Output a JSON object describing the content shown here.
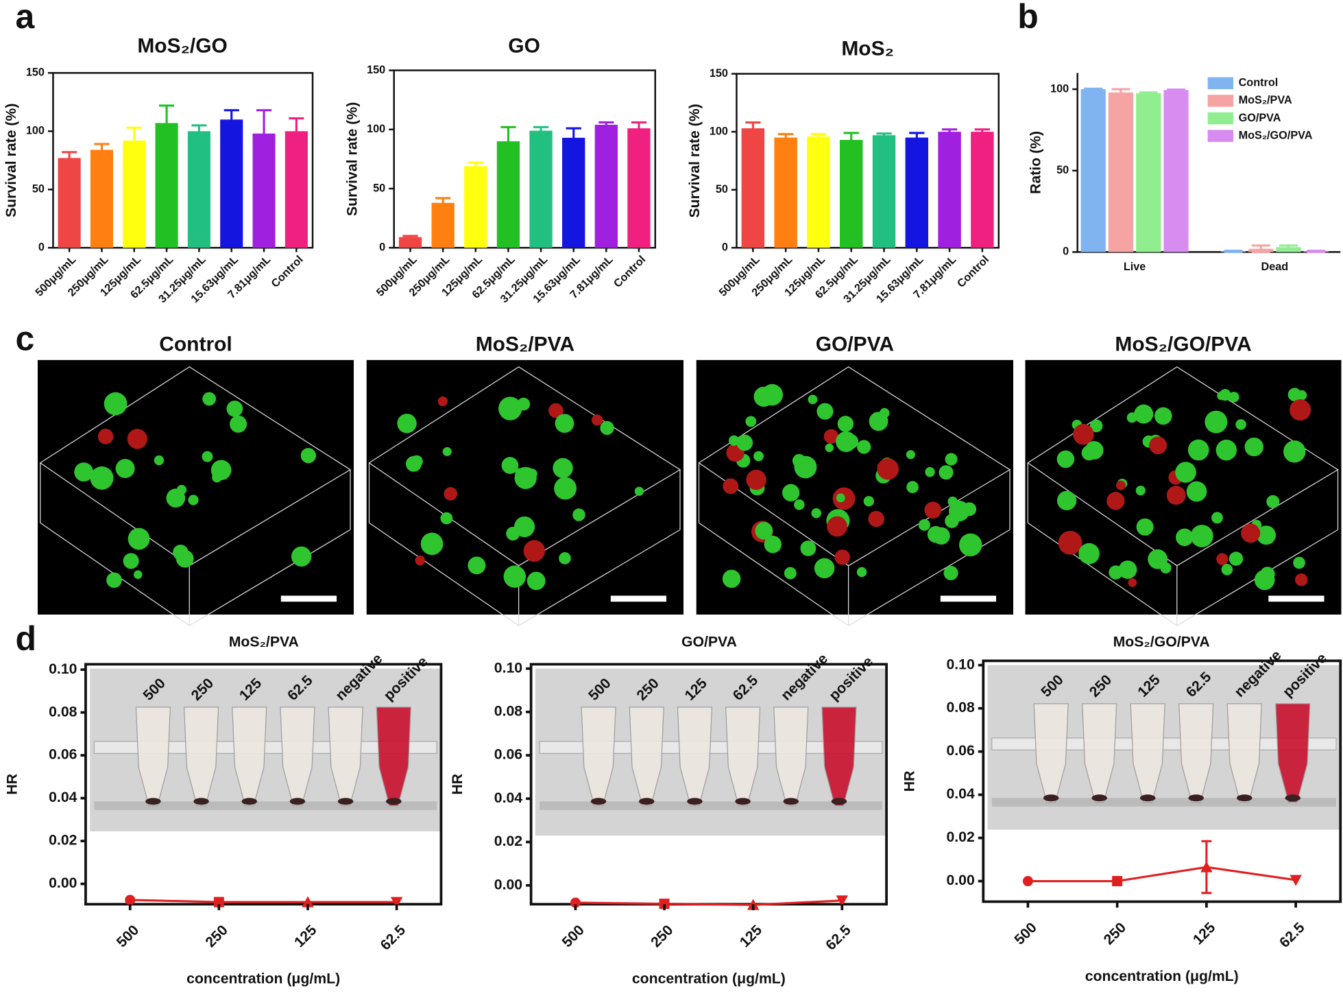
{
  "panel_labels": [
    "a",
    "b",
    "c",
    "d"
  ],
  "images": [
    {
      "title": "Control"
    },
    {
      "title": "MoS₂/PVA"
    },
    {
      "title": "GO/PVA"
    },
    {
      "title": "MoS₂/GO/PVA"
    }
  ],
  "chart_data": [
    {
      "type": "bar",
      "title": "MoS₂/GO",
      "y_label": "Survival rate (%)",
      "categories": [
        "500μg/mL",
        "250μg/mL",
        "125μg/mL",
        "62.5μg/mL",
        "31.25μg/mL",
        "15.63μg/mL",
        "7.81μg/mL",
        "Control"
      ],
      "values": [
        77,
        84,
        92,
        107,
        100,
        110,
        98,
        100
      ],
      "errors": [
        5,
        5,
        11,
        15,
        5,
        8,
        20,
        11
      ],
      "colors": [
        "#f04545",
        "#ff8010",
        "#ffff10",
        "#22c022",
        "#22c080",
        "#1515e0",
        "#a020e0",
        "#f02080"
      ],
      "ylim": [
        0,
        150
      ],
      "yticks": [
        0,
        50,
        100,
        150
      ]
    },
    {
      "type": "bar",
      "title": "GO",
      "y_label": "Survival rate (%)",
      "categories": [
        "500μg/mL",
        "250μg/mL",
        "125μg/mL",
        "62.5μg/mL",
        "31.25μg/mL",
        "15.63μg/mL",
        "7.81μg/mL",
        "Control"
      ],
      "values": [
        9,
        38,
        69,
        90,
        99,
        93,
        104,
        101
      ],
      "errors": [
        1,
        4,
        3,
        12,
        3,
        8,
        2,
        5
      ],
      "colors": [
        "#f04545",
        "#ff8010",
        "#ffff10",
        "#22c022",
        "#22c080",
        "#1515e0",
        "#a020e0",
        "#f02080"
      ],
      "ylim": [
        0,
        150
      ],
      "yticks": [
        0,
        50,
        100,
        150
      ]
    },
    {
      "type": "bar",
      "title": "MoS₂",
      "y_label": "Survival rate (%)",
      "categories": [
        "500μg/mL",
        "250μg/mL",
        "125μg/mL",
        "62.5μg/mL",
        "31.25μg/mL",
        "15.63μg/mL",
        "7.81μg/mL",
        "Control"
      ],
      "values": [
        103,
        95,
        96,
        93,
        97,
        95,
        100,
        100
      ],
      "errors": [
        5,
        3,
        2,
        6,
        1.5,
        4,
        2,
        2
      ],
      "colors": [
        "#f04545",
        "#ff8010",
        "#ffff10",
        "#22c022",
        "#22c080",
        "#1515e0",
        "#a020e0",
        "#f02080"
      ],
      "ylim": [
        0,
        150
      ],
      "yticks": [
        0,
        50,
        100,
        150
      ]
    },
    {
      "type": "grouped_bar",
      "y_label": "Ratio (%)",
      "categories": [
        "Live",
        "Dead"
      ],
      "series": [
        {
          "name": "Control",
          "color": "#80b4f0",
          "values": [
            100,
            0.5
          ],
          "errors": [
            0.3,
            0.3
          ]
        },
        {
          "name": "MoS₂/PVA",
          "color": "#f5a3a3",
          "values": [
            98,
            2
          ],
          "errors": [
            2,
            2
          ]
        },
        {
          "name": "GO/PVA",
          "color": "#90ee90",
          "values": [
            97.5,
            3
          ],
          "errors": [
            0.5,
            1
          ]
        },
        {
          "name": "MoS₂/GO/PVA",
          "color": "#d88cf0",
          "values": [
            99.5,
            0.5
          ],
          "errors": [
            0.3,
            0.3
          ]
        }
      ],
      "ylim": [
        0,
        110
      ],
      "yticks": [
        0,
        50,
        100
      ],
      "legend": "upper right"
    },
    {
      "type": "line",
      "title": "MoS₂/PVA",
      "x_label": "concentration (μg/mL)",
      "y_label": "HR",
      "categories": [
        "500",
        "250",
        "125",
        "62.5"
      ],
      "values": [
        -0.0075,
        -0.0085,
        -0.0085,
        -0.0085
      ],
      "color": "#e02020",
      "photo_labels": [
        "500",
        "250",
        "125",
        "62.5",
        "negative",
        "positive"
      ],
      "ylim": [
        -0.0095,
        0.1025
      ],
      "yticks": [
        {
          "value": 0,
          "label": "0.00"
        },
        {
          "value": 0.02,
          "label": "0.02"
        },
        {
          "value": 0.04,
          "label": "0.04"
        },
        {
          "value": 0.06,
          "label": "0.06"
        },
        {
          "value": 0.08,
          "label": "0.08"
        },
        {
          "value": 0.1,
          "label": "0.10"
        }
      ]
    },
    {
      "type": "line",
      "title": "GO/PVA",
      "x_label": "concentration (μg/mL)",
      "y_label": "HR",
      "categories": [
        "500",
        "250",
        "125",
        "62.5"
      ],
      "values": [
        -0.008,
        -0.0085,
        -0.009,
        -0.007
      ],
      "color": "#e02020",
      "photo_labels": [
        "500",
        "250",
        "125",
        "62.5",
        "negative",
        "positive"
      ],
      "ylim": [
        -0.0087,
        0.102
      ],
      "yticks": [
        {
          "value": 0,
          "label": "0.00"
        },
        {
          "value": 0.02,
          "label": "0.02"
        },
        {
          "value": 0.04,
          "label": "0.04"
        },
        {
          "value": 0.06,
          "label": "0.06"
        },
        {
          "value": 0.08,
          "label": "0.08"
        },
        {
          "value": 0.1,
          "label": "0.10"
        }
      ]
    },
    {
      "type": "line",
      "title": "MoS₂/GO/PVA",
      "x_label": "concentration (μg/mL)",
      "y_label": "HR",
      "categories": [
        "500",
        "250",
        "125",
        "62.5"
      ],
      "values": [
        0,
        0,
        0.0065,
        0.0005
      ],
      "errors": [
        0,
        0,
        0.012,
        0
      ],
      "color": "#e02020",
      "photo_labels": [
        "500",
        "250",
        "125",
        "62.5",
        "negative",
        "positive"
      ],
      "ylim": [
        -0.0095,
        0.102
      ],
      "yticks": [
        {
          "value": 0,
          "label": "0.00"
        },
        {
          "value": 0.02,
          "label": "0.02"
        },
        {
          "value": 0.04,
          "label": "0.04"
        },
        {
          "value": 0.06,
          "label": "0.06"
        },
        {
          "value": 0.08,
          "label": "0.08"
        },
        {
          "value": 0.1,
          "label": "0.10"
        }
      ]
    }
  ]
}
